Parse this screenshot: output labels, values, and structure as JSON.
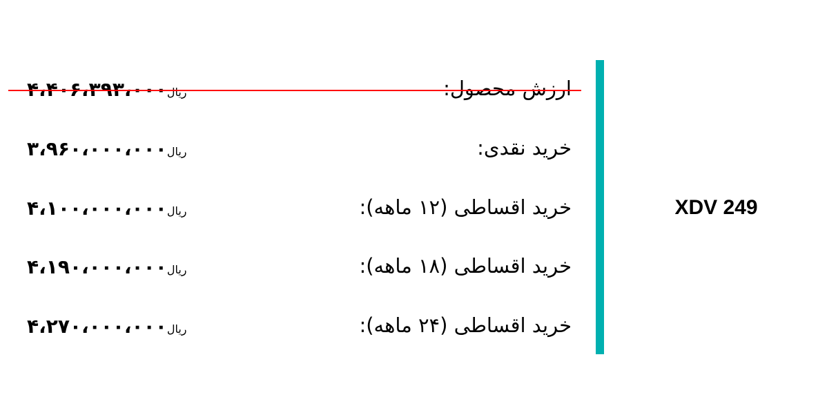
{
  "accent_color": "#00b0b0",
  "strike_color": "#ff0000",
  "model": "XDV 249",
  "rows": [
    {
      "label": "ارزش محصول:",
      "price": "۴،۴۰۶،۳۹۳،۰۰۰",
      "currency": "ریال",
      "struck": true
    },
    {
      "label": "خرید نقدی:",
      "price": "۳،۹۶۰،۰۰۰،۰۰۰",
      "currency": "ریال"
    },
    {
      "label": "خرید اقساطی (۱۲ ماهه):",
      "price": "۴،۱۰۰،۰۰۰،۰۰۰",
      "currency": "ریال"
    },
    {
      "label": "خرید اقساطی (۱۸ ماهه):",
      "price": "۴،۱۹۰،۰۰۰،۰۰۰",
      "currency": "ریال"
    },
    {
      "label": "خرید اقساطی (۲۴ ماهه):",
      "price": "۴،۲۷۰،۰۰۰،۰۰۰",
      "currency": "ریال"
    }
  ]
}
